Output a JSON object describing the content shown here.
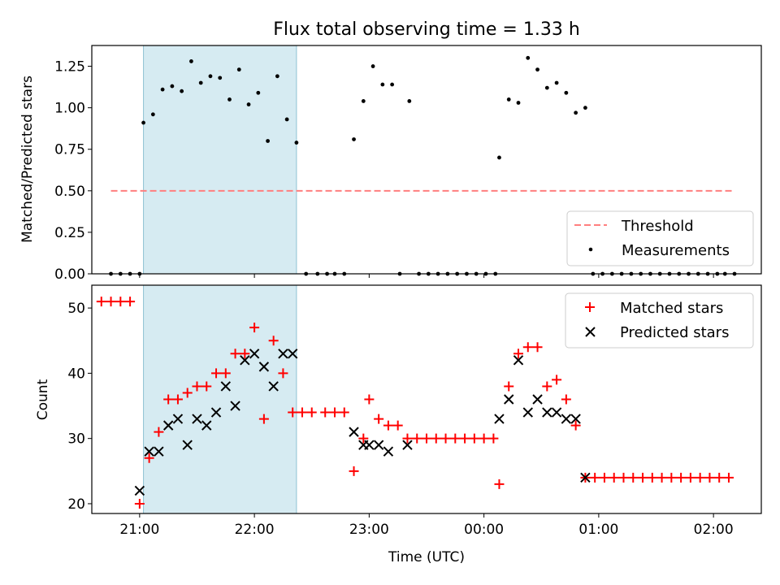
{
  "chart_data": [
    {
      "type": "scatter",
      "title": "Flux total observing time = 1.33 h",
      "xlabel": "",
      "ylabel": "Matched/Predicted stars",
      "xlim": [
        "20:35",
        "02:25"
      ],
      "ylim": [
        0,
        1.375
      ],
      "yticks": [
        "0.00",
        "0.25",
        "0.50",
        "0.75",
        "1.00",
        "1.25"
      ],
      "xticks": [
        "21:00",
        "22:00",
        "23:00",
        "00:00",
        "01:00",
        "02:00"
      ],
      "shaded_span": {
        "start": "21:02",
        "end": "22:22"
      },
      "legend": {
        "position": "lower-right",
        "entries": [
          "Threshold",
          "Measurements"
        ]
      },
      "threshold": {
        "name": "Threshold",
        "value": 0.5,
        "x_start": "20:45",
        "x_end": "02:10",
        "color": "#ff7f7f"
      },
      "series": [
        {
          "name": "Measurements",
          "color": "#000000",
          "points": [
            [
              "20:45",
              0
            ],
            [
              "20:50",
              0
            ],
            [
              "20:55",
              0
            ],
            [
              "21:00",
              0
            ],
            [
              "21:02",
              0.91
            ],
            [
              "21:07",
              0.96
            ],
            [
              "21:12",
              1.11
            ],
            [
              "21:17",
              1.13
            ],
            [
              "21:22",
              1.1
            ],
            [
              "21:27",
              1.28
            ],
            [
              "21:32",
              1.15
            ],
            [
              "21:37",
              1.19
            ],
            [
              "21:42",
              1.18
            ],
            [
              "21:47",
              1.05
            ],
            [
              "21:52",
              1.23
            ],
            [
              "21:57",
              1.02
            ],
            [
              "22:02",
              1.09
            ],
            [
              "22:07",
              0.8
            ],
            [
              "22:12",
              1.19
            ],
            [
              "22:17",
              0.93
            ],
            [
              "22:22",
              0.79
            ],
            [
              "22:27",
              0
            ],
            [
              "22:33",
              0
            ],
            [
              "22:38",
              0
            ],
            [
              "22:42",
              0
            ],
            [
              "22:47",
              0
            ],
            [
              "22:52",
              0.81
            ],
            [
              "22:57",
              1.04
            ],
            [
              "23:02",
              1.25
            ],
            [
              "23:07",
              1.14
            ],
            [
              "23:12",
              1.14
            ],
            [
              "23:16",
              0
            ],
            [
              "23:21",
              1.04
            ],
            [
              "23:26",
              0
            ],
            [
              "23:31",
              0
            ],
            [
              "23:36",
              0
            ],
            [
              "23:41",
              0
            ],
            [
              "23:46",
              0
            ],
            [
              "23:51",
              0
            ],
            [
              "23:56",
              0
            ],
            [
              "00:01",
              0
            ],
            [
              "00:06",
              0
            ],
            [
              "00:08",
              0.7
            ],
            [
              "00:13",
              1.05
            ],
            [
              "00:18",
              1.03
            ],
            [
              "00:23",
              1.3
            ],
            [
              "00:28",
              1.23
            ],
            [
              "00:33",
              1.12
            ],
            [
              "00:38",
              1.15
            ],
            [
              "00:43",
              1.09
            ],
            [
              "00:48",
              0.97
            ],
            [
              "00:53",
              1.0
            ],
            [
              "00:57",
              0
            ],
            [
              "01:02",
              0
            ],
            [
              "01:07",
              0
            ],
            [
              "01:12",
              0
            ],
            [
              "01:17",
              0
            ],
            [
              "01:22",
              0
            ],
            [
              "01:27",
              0
            ],
            [
              "01:32",
              0
            ],
            [
              "01:37",
              0
            ],
            [
              "01:42",
              0
            ],
            [
              "01:47",
              0
            ],
            [
              "01:52",
              0
            ],
            [
              "01:57",
              0
            ],
            [
              "02:02",
              0
            ],
            [
              "02:06",
              0
            ],
            [
              "02:11",
              0
            ]
          ]
        }
      ]
    },
    {
      "type": "scatter",
      "title": "",
      "xlabel": "Time (UTC)",
      "ylabel": "Count",
      "xlim": [
        "20:35",
        "02:25"
      ],
      "ylim": [
        18.5,
        53.5
      ],
      "yticks": [
        "20",
        "30",
        "40",
        "50"
      ],
      "xticks": [
        "21:00",
        "22:00",
        "23:00",
        "00:00",
        "01:00",
        "02:00"
      ],
      "shaded_span": {
        "start": "21:02",
        "end": "22:22"
      },
      "legend": {
        "position": "top-right",
        "entries": [
          "Matched stars",
          "Predicted stars"
        ]
      },
      "series": [
        {
          "name": "Matched stars",
          "marker": "+",
          "color": "#ff0000",
          "points": [
            [
              "20:40",
              51
            ],
            [
              "20:45",
              51
            ],
            [
              "20:50",
              51
            ],
            [
              "20:55",
              51
            ],
            [
              "21:00",
              20
            ],
            [
              "21:05",
              27
            ],
            [
              "21:10",
              31
            ],
            [
              "21:15",
              36
            ],
            [
              "21:20",
              36
            ],
            [
              "21:25",
              37
            ],
            [
              "21:30",
              38
            ],
            [
              "21:35",
              38
            ],
            [
              "21:40",
              40
            ],
            [
              "21:45",
              40
            ],
            [
              "21:50",
              43
            ],
            [
              "21:55",
              43
            ],
            [
              "22:00",
              47
            ],
            [
              "22:05",
              33
            ],
            [
              "22:10",
              45
            ],
            [
              "22:15",
              40
            ],
            [
              "22:20",
              34
            ],
            [
              "22:25",
              34
            ],
            [
              "22:30",
              34
            ],
            [
              "22:37",
              34
            ],
            [
              "22:42",
              34
            ],
            [
              "22:47",
              34
            ],
            [
              "22:52",
              25
            ],
            [
              "22:57",
              30
            ],
            [
              "23:00",
              36
            ],
            [
              "23:05",
              33
            ],
            [
              "23:10",
              32
            ],
            [
              "23:15",
              32
            ],
            [
              "23:20",
              30
            ],
            [
              "23:25",
              30
            ],
            [
              "23:30",
              30
            ],
            [
              "23:35",
              30
            ],
            [
              "23:40",
              30
            ],
            [
              "23:45",
              30
            ],
            [
              "23:50",
              30
            ],
            [
              "23:55",
              30
            ],
            [
              "00:00",
              30
            ],
            [
              "00:05",
              30
            ],
            [
              "00:08",
              23
            ],
            [
              "00:13",
              38
            ],
            [
              "00:18",
              43
            ],
            [
              "00:23",
              44
            ],
            [
              "00:28",
              44
            ],
            [
              "00:33",
              38
            ],
            [
              "00:38",
              39
            ],
            [
              "00:43",
              36
            ],
            [
              "00:48",
              32
            ],
            [
              "00:53",
              24
            ],
            [
              "00:58",
              24
            ],
            [
              "01:03",
              24
            ],
            [
              "01:08",
              24
            ],
            [
              "01:13",
              24
            ],
            [
              "01:18",
              24
            ],
            [
              "01:23",
              24
            ],
            [
              "01:28",
              24
            ],
            [
              "01:33",
              24
            ],
            [
              "01:38",
              24
            ],
            [
              "01:43",
              24
            ],
            [
              "01:48",
              24
            ],
            [
              "01:53",
              24
            ],
            [
              "01:58",
              24
            ],
            [
              "02:03",
              24
            ],
            [
              "02:08",
              24
            ]
          ]
        },
        {
          "name": "Predicted stars",
          "marker": "x",
          "color": "#000000",
          "points": [
            [
              "21:00",
              22
            ],
            [
              "21:05",
              28
            ],
            [
              "21:10",
              28
            ],
            [
              "21:15",
              32
            ],
            [
              "21:20",
              33
            ],
            [
              "21:25",
              29
            ],
            [
              "21:30",
              33
            ],
            [
              "21:35",
              32
            ],
            [
              "21:40",
              34
            ],
            [
              "21:45",
              38
            ],
            [
              "21:50",
              35
            ],
            [
              "21:55",
              42
            ],
            [
              "22:00",
              43
            ],
            [
              "22:05",
              41
            ],
            [
              "22:10",
              38
            ],
            [
              "22:15",
              43
            ],
            [
              "22:20",
              43
            ],
            [
              "22:52",
              31
            ],
            [
              "22:57",
              29
            ],
            [
              "23:00",
              29
            ],
            [
              "23:05",
              29
            ],
            [
              "23:10",
              28
            ],
            [
              "23:20",
              29
            ],
            [
              "00:08",
              33
            ],
            [
              "00:13",
              36
            ],
            [
              "00:18",
              42
            ],
            [
              "00:23",
              34
            ],
            [
              "00:28",
              36
            ],
            [
              "00:33",
              34
            ],
            [
              "00:38",
              34
            ],
            [
              "00:43",
              33
            ],
            [
              "00:48",
              33
            ],
            [
              "00:53",
              24
            ]
          ]
        }
      ]
    }
  ]
}
